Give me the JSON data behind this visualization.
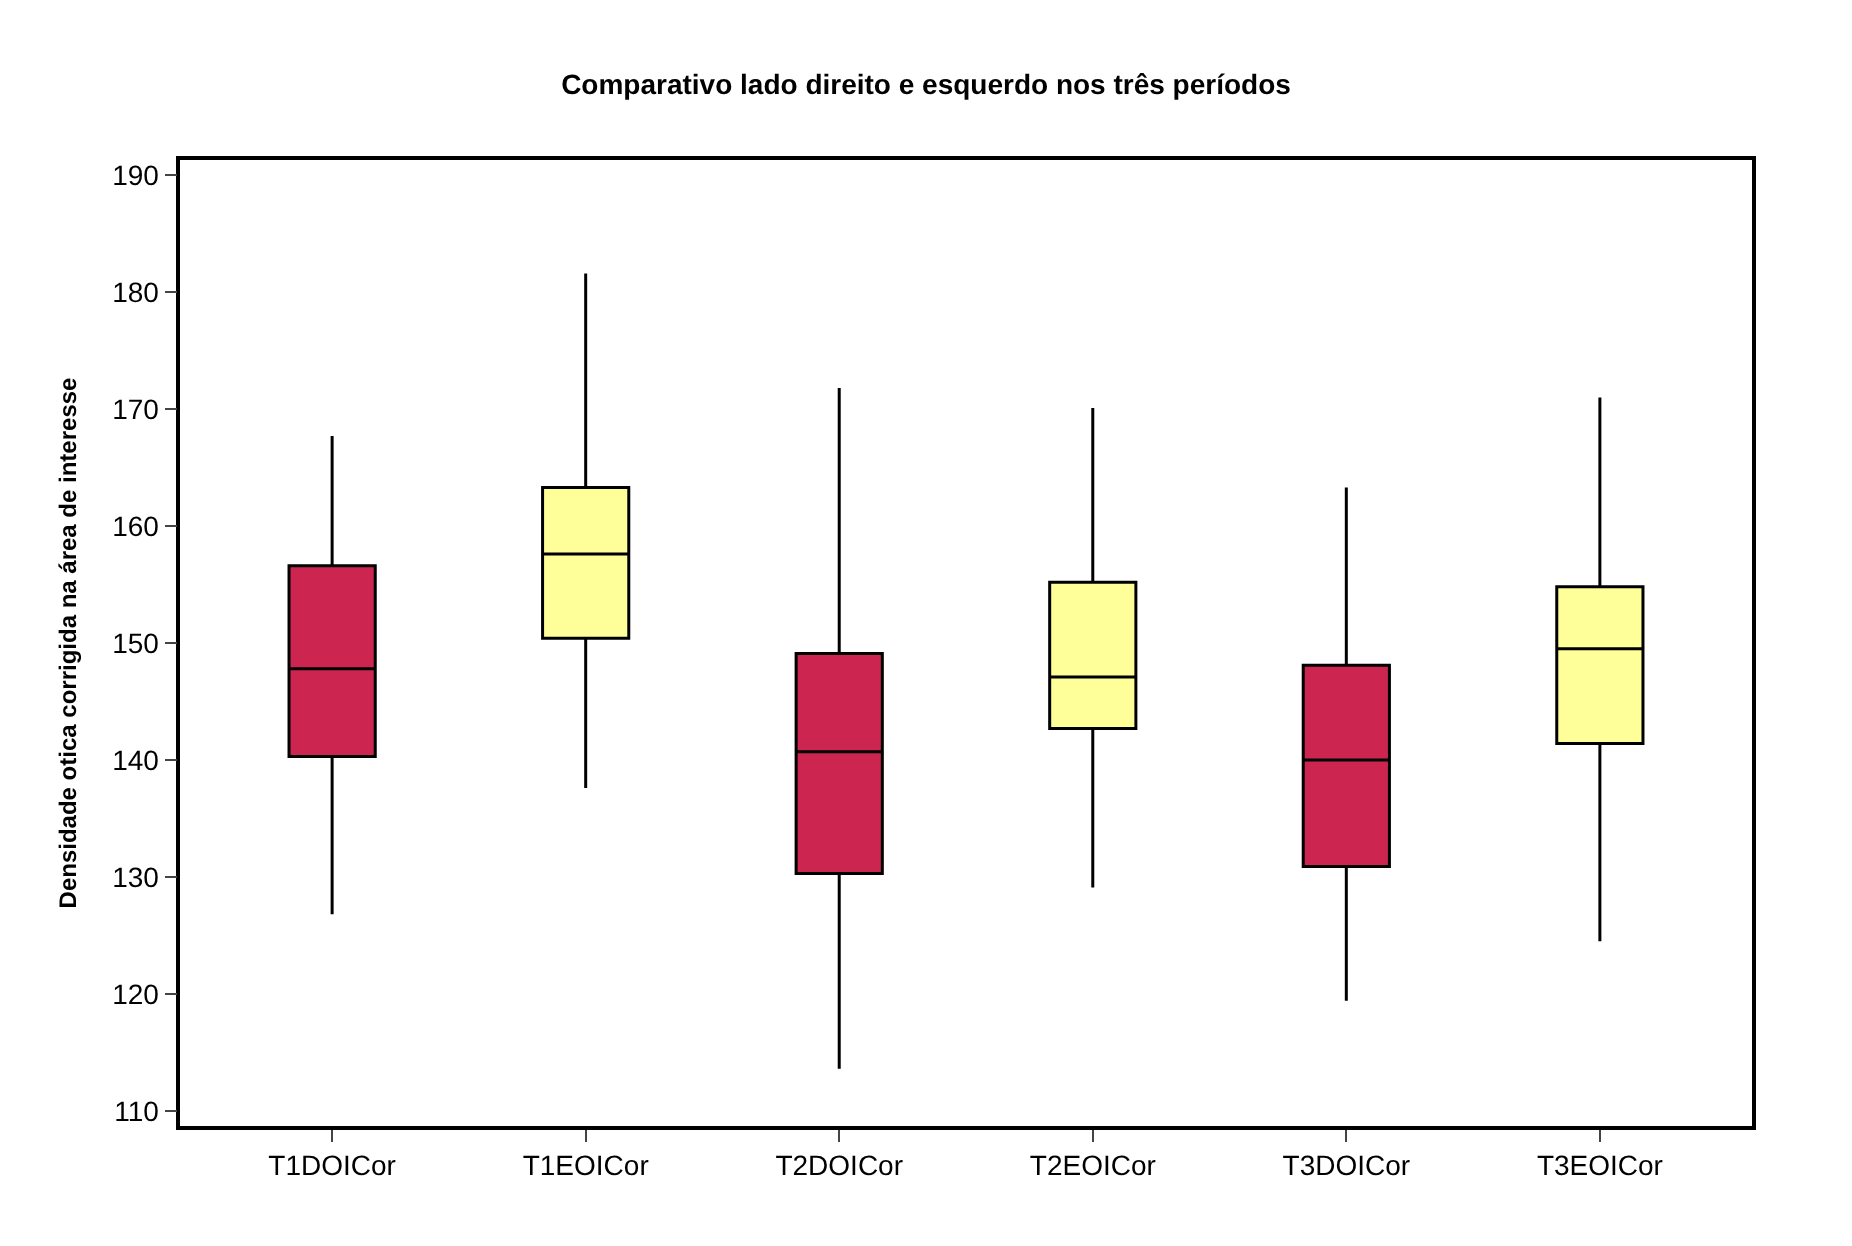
{
  "chart_data": {
    "type": "box",
    "title": "Comparativo lado direito e esquerdo nos três períodos",
    "ylabel": "Densidade otica corrigida na área de interesse",
    "categories": [
      "T1DOICor",
      "T1EOICor",
      "T2DOICor",
      "T2EOICor",
      "T3DOICor",
      "T3EOICor"
    ],
    "colors": [
      "#cc2650",
      "#ffff99",
      "#cc2650",
      "#ffff99",
      "#cc2650",
      "#ffff99"
    ],
    "boxes": [
      {
        "low": 126.8,
        "q1": 140.3,
        "median": 147.8,
        "q3": 156.6,
        "high": 167.7
      },
      {
        "low": 137.6,
        "q1": 150.4,
        "median": 157.6,
        "q3": 163.3,
        "high": 181.6
      },
      {
        "low": 113.6,
        "q1": 130.3,
        "median": 140.7,
        "q3": 149.1,
        "high": 171.8
      },
      {
        "low": 129.1,
        "q1": 142.7,
        "median": 147.1,
        "q3": 155.2,
        "high": 170.1
      },
      {
        "low": 119.4,
        "q1": 130.9,
        "median": 140.0,
        "q3": 148.1,
        "high": 163.3
      },
      {
        "low": 124.5,
        "q1": 141.4,
        "median": 149.5,
        "q3": 154.8,
        "high": 171.0
      }
    ],
    "ylim": [
      108.7,
      191.3
    ],
    "yticks": [
      110,
      120,
      130,
      140,
      150,
      160,
      170,
      180,
      190
    ]
  }
}
